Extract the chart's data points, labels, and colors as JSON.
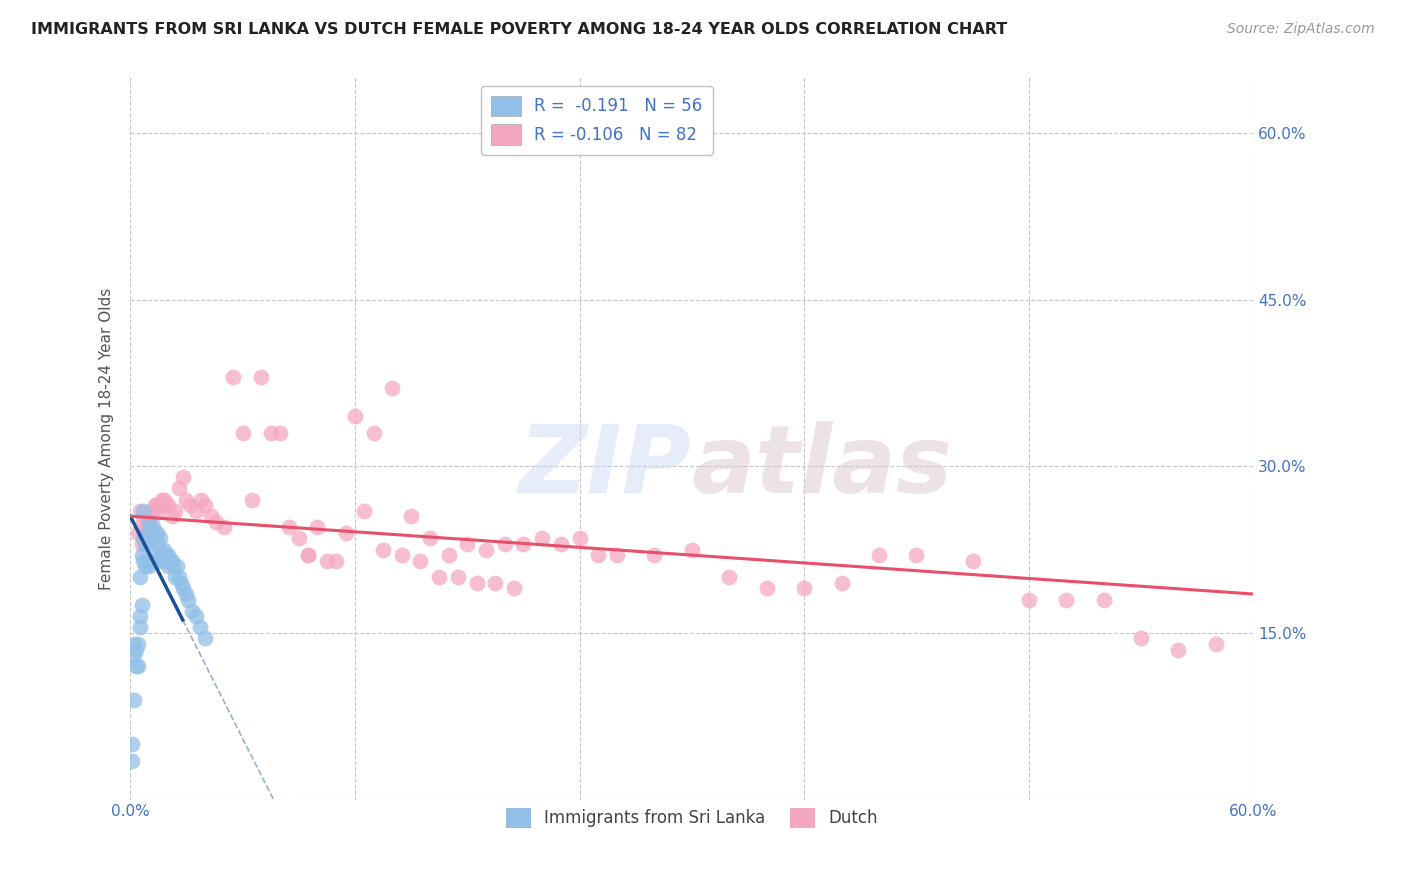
{
  "title": "IMMIGRANTS FROM SRI LANKA VS DUTCH FEMALE POVERTY AMONG 18-24 YEAR OLDS CORRELATION CHART",
  "source": "Source: ZipAtlas.com",
  "ylabel": "Female Poverty Among 18-24 Year Olds",
  "legend_label1": "Immigrants from Sri Lanka",
  "legend_label2": "Dutch",
  "R1": -0.191,
  "N1": 56,
  "R2": -0.106,
  "N2": 82,
  "xlim": [
    0.0,
    0.6
  ],
  "ylim": [
    0.0,
    0.65
  ],
  "y_ticks": [
    0.0,
    0.15,
    0.3,
    0.45,
    0.6
  ],
  "x_gridlines": [
    0.0,
    0.12,
    0.24,
    0.36,
    0.48,
    0.6
  ],
  "color_blue": "#92bfe8",
  "color_pink": "#f4a8c0",
  "color_trend_blue": "#1a4f9a",
  "color_trend_pink": "#e8506a",
  "background_color": "#ffffff",
  "grid_color": "#c8c8c8",
  "blue_points_x": [
    0.001,
    0.001,
    0.002,
    0.002,
    0.002,
    0.003,
    0.003,
    0.004,
    0.004,
    0.005,
    0.005,
    0.005,
    0.006,
    0.006,
    0.007,
    0.007,
    0.007,
    0.008,
    0.008,
    0.009,
    0.009,
    0.01,
    0.01,
    0.01,
    0.011,
    0.011,
    0.012,
    0.012,
    0.013,
    0.013,
    0.014,
    0.014,
    0.015,
    0.015,
    0.016,
    0.016,
    0.017,
    0.018,
    0.018,
    0.019,
    0.02,
    0.02,
    0.021,
    0.022,
    0.023,
    0.024,
    0.025,
    0.026,
    0.027,
    0.028,
    0.03,
    0.031,
    0.033,
    0.035,
    0.037,
    0.04
  ],
  "blue_points_y": [
    0.035,
    0.05,
    0.13,
    0.14,
    0.09,
    0.12,
    0.135,
    0.12,
    0.14,
    0.155,
    0.165,
    0.2,
    0.175,
    0.22,
    0.215,
    0.235,
    0.26,
    0.21,
    0.23,
    0.215,
    0.24,
    0.21,
    0.23,
    0.25,
    0.215,
    0.235,
    0.215,
    0.245,
    0.215,
    0.24,
    0.22,
    0.24,
    0.215,
    0.23,
    0.22,
    0.235,
    0.22,
    0.215,
    0.225,
    0.22,
    0.21,
    0.22,
    0.215,
    0.215,
    0.21,
    0.2,
    0.21,
    0.2,
    0.195,
    0.19,
    0.185,
    0.18,
    0.17,
    0.165,
    0.155,
    0.145
  ],
  "pink_points_x": [
    0.004,
    0.005,
    0.006,
    0.007,
    0.008,
    0.009,
    0.01,
    0.011,
    0.012,
    0.013,
    0.014,
    0.015,
    0.016,
    0.017,
    0.018,
    0.019,
    0.02,
    0.022,
    0.024,
    0.026,
    0.028,
    0.03,
    0.032,
    0.035,
    0.038,
    0.04,
    0.043,
    0.046,
    0.05,
    0.055,
    0.06,
    0.065,
    0.07,
    0.075,
    0.08,
    0.085,
    0.09,
    0.095,
    0.1,
    0.11,
    0.12,
    0.13,
    0.14,
    0.15,
    0.16,
    0.17,
    0.18,
    0.19,
    0.2,
    0.21,
    0.22,
    0.23,
    0.24,
    0.25,
    0.26,
    0.28,
    0.3,
    0.32,
    0.34,
    0.36,
    0.38,
    0.4,
    0.42,
    0.45,
    0.48,
    0.5,
    0.52,
    0.54,
    0.56,
    0.58,
    0.095,
    0.105,
    0.115,
    0.125,
    0.135,
    0.145,
    0.155,
    0.165,
    0.175,
    0.185,
    0.195,
    0.205
  ],
  "pink_points_y": [
    0.24,
    0.26,
    0.23,
    0.25,
    0.24,
    0.25,
    0.245,
    0.26,
    0.255,
    0.265,
    0.265,
    0.26,
    0.265,
    0.27,
    0.27,
    0.265,
    0.265,
    0.255,
    0.26,
    0.28,
    0.29,
    0.27,
    0.265,
    0.26,
    0.27,
    0.265,
    0.255,
    0.25,
    0.245,
    0.38,
    0.33,
    0.27,
    0.38,
    0.33,
    0.33,
    0.245,
    0.235,
    0.22,
    0.245,
    0.215,
    0.345,
    0.33,
    0.37,
    0.255,
    0.235,
    0.22,
    0.23,
    0.225,
    0.23,
    0.23,
    0.235,
    0.23,
    0.235,
    0.22,
    0.22,
    0.22,
    0.225,
    0.2,
    0.19,
    0.19,
    0.195,
    0.22,
    0.22,
    0.215,
    0.18,
    0.18,
    0.18,
    0.145,
    0.135,
    0.14,
    0.22,
    0.215,
    0.24,
    0.26,
    0.225,
    0.22,
    0.215,
    0.2,
    0.2,
    0.195,
    0.195,
    0.19
  ],
  "blue_trend_x0": 0.0,
  "blue_trend_y0": 0.255,
  "blue_trend_x1": 0.03,
  "blue_trend_y1": 0.155,
  "blue_trend_solid_end": 0.028,
  "blue_trend_dash_end": 0.6,
  "pink_trend_x0": 0.0,
  "pink_trend_y0": 0.255,
  "pink_trend_x1": 0.6,
  "pink_trend_y1": 0.185
}
